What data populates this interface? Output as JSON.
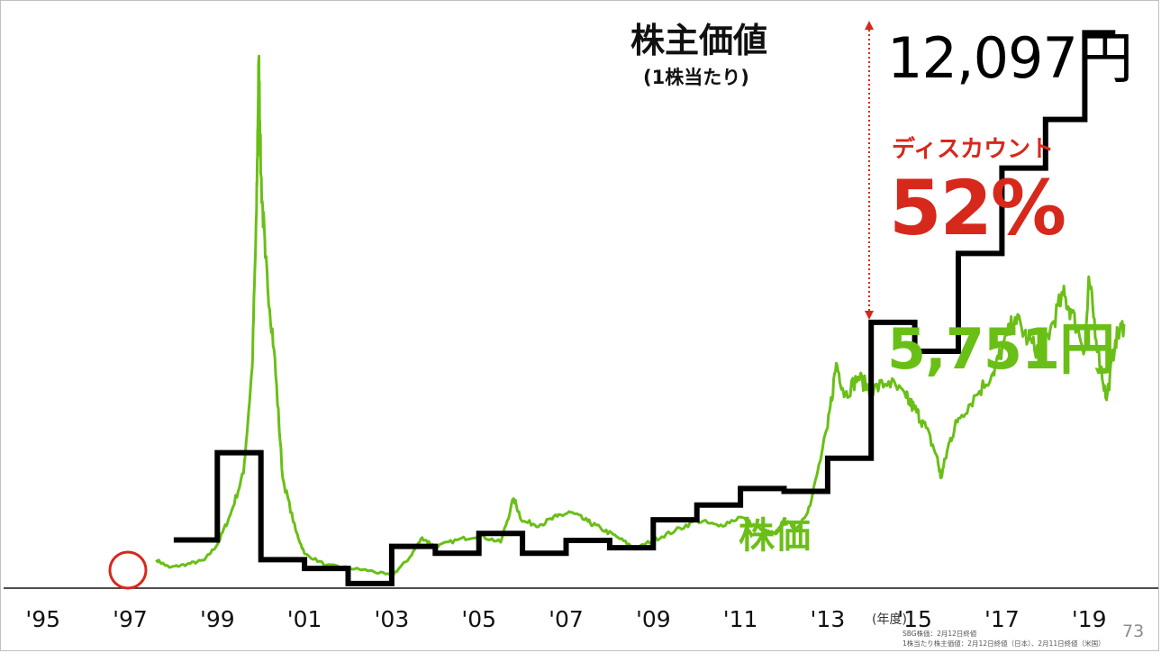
{
  "page_number": "73",
  "chart_data": {
    "type": "line",
    "title": "株主価値",
    "subtitle": "(1株当たり)",
    "x_unit": "(年度)",
    "x_ticks": [
      "'95",
      "'97",
      "'99",
      "'01",
      "'03",
      "'05",
      "'07",
      "'09",
      "'11",
      "'13",
      "'15",
      "'17",
      "'19"
    ],
    "xlim": [
      1994.8,
      2020.4
    ],
    "ylim": [
      0,
      12400
    ],
    "grid": false,
    "legend": "none",
    "series": [
      {
        "name": "株主価値",
        "style": "step",
        "color": "#000000",
        "points": [
          [
            1998.0,
            1050
          ],
          [
            1999.0,
            2950
          ],
          [
            2000.0,
            620
          ],
          [
            2001.0,
            430
          ],
          [
            2002.0,
            100
          ],
          [
            2003.0,
            910
          ],
          [
            2004.0,
            760
          ],
          [
            2005.0,
            1190
          ],
          [
            2006.0,
            760
          ],
          [
            2007.0,
            1040
          ],
          [
            2008.0,
            880
          ],
          [
            2009.0,
            1490
          ],
          [
            2010.0,
            1810
          ],
          [
            2011.0,
            2170
          ],
          [
            2012.0,
            2110
          ],
          [
            2013.0,
            2830
          ],
          [
            2014.0,
            5790
          ],
          [
            2015.0,
            5160
          ],
          [
            2016.0,
            7290
          ],
          [
            2017.0,
            9150
          ],
          [
            2018.0,
            10210
          ],
          [
            2018.9,
            12097
          ],
          [
            2019.6,
            12097
          ]
        ]
      },
      {
        "name": "株価",
        "style": "line",
        "color": "#6abf16",
        "points": [
          [
            1997.6,
            620
          ],
          [
            1997.9,
            450
          ],
          [
            1998.3,
            520
          ],
          [
            1998.7,
            610
          ],
          [
            1999.0,
            950
          ],
          [
            1999.3,
            1600
          ],
          [
            1999.6,
            2500
          ],
          [
            1999.8,
            4800
          ],
          [
            1999.9,
            8200
          ],
          [
            1999.95,
            11500
          ],
          [
            2000.0,
            9000
          ],
          [
            2000.1,
            7200
          ],
          [
            2000.3,
            5200
          ],
          [
            2000.5,
            2400
          ],
          [
            2000.8,
            1250
          ],
          [
            2001.0,
            750
          ],
          [
            2001.5,
            500
          ],
          [
            2002.0,
            440
          ],
          [
            2002.5,
            380
          ],
          [
            2003.0,
            270
          ],
          [
            2003.4,
            650
          ],
          [
            2003.7,
            1100
          ],
          [
            2004.0,
            900
          ],
          [
            2004.5,
            1050
          ],
          [
            2005.0,
            1150
          ],
          [
            2005.5,
            1000
          ],
          [
            2005.8,
            1950
          ],
          [
            2006.0,
            1450
          ],
          [
            2006.4,
            1380
          ],
          [
            2006.8,
            1560
          ],
          [
            2007.1,
            1650
          ],
          [
            2007.5,
            1450
          ],
          [
            2007.8,
            1300
          ],
          [
            2008.2,
            1100
          ],
          [
            2008.6,
            850
          ],
          [
            2009.0,
            1050
          ],
          [
            2009.5,
            1250
          ],
          [
            2010.0,
            1480
          ],
          [
            2010.5,
            1350
          ],
          [
            2011.0,
            1550
          ],
          [
            2011.5,
            1250
          ],
          [
            2011.8,
            1180
          ],
          [
            2012.0,
            1450
          ],
          [
            2012.3,
            1300
          ],
          [
            2012.6,
            1800
          ],
          [
            2013.0,
            3500
          ],
          [
            2013.2,
            4900
          ],
          [
            2013.4,
            4200
          ],
          [
            2013.7,
            4600
          ],
          [
            2014.0,
            4300
          ],
          [
            2014.4,
            4500
          ],
          [
            2014.8,
            4150
          ],
          [
            2015.0,
            3900
          ],
          [
            2015.2,
            3600
          ],
          [
            2015.5,
            2900
          ],
          [
            2015.6,
            2400
          ],
          [
            2015.8,
            3200
          ],
          [
            2016.0,
            3700
          ],
          [
            2016.4,
            4200
          ],
          [
            2016.8,
            4700
          ],
          [
            2017.0,
            5200
          ],
          [
            2017.3,
            5900
          ],
          [
            2017.6,
            5400
          ],
          [
            2017.9,
            5100
          ],
          [
            2018.1,
            5600
          ],
          [
            2018.4,
            6400
          ],
          [
            2018.6,
            6000
          ],
          [
            2018.9,
            5200
          ],
          [
            2019.0,
            6700
          ],
          [
            2019.2,
            5200
          ],
          [
            2019.4,
            4100
          ],
          [
            2019.6,
            5400
          ],
          [
            2019.8,
            5751
          ]
        ]
      }
    ],
    "annotations": {
      "book_value_per_share": "12,097円",
      "discount_label": "ディスカウント",
      "discount_value": "52%",
      "share_price": "5,751円",
      "share_price_label": "株価"
    },
    "footnotes": [
      "SBG株価：2月12日終値",
      "1株当たり株主価値：2月12日終値（日本）、2月11日終値（米国）"
    ]
  }
}
